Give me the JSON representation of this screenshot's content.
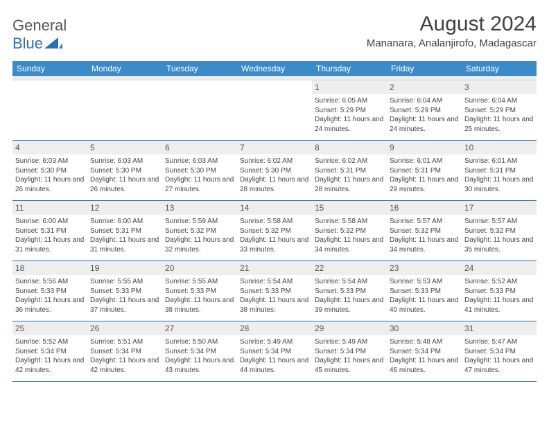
{
  "logo": {
    "text1": "General",
    "text2": "Blue"
  },
  "header": {
    "month": "August 2024",
    "location": "Mananara, Analanjirofo, Madagascar"
  },
  "colors": {
    "header_bg": "#3b8bc9",
    "accent": "#2d6fb6",
    "num_bg": "#eeeeee"
  },
  "weekdays": [
    "Sunday",
    "Monday",
    "Tuesday",
    "Wednesday",
    "Thursday",
    "Friday",
    "Saturday"
  ],
  "weeks": [
    [
      {
        "empty": true
      },
      {
        "empty": true
      },
      {
        "empty": true
      },
      {
        "empty": true
      },
      {
        "num": "1",
        "sunrise": "6:05 AM",
        "sunset": "5:29 PM",
        "daylight": "11 hours and 24 minutes."
      },
      {
        "num": "2",
        "sunrise": "6:04 AM",
        "sunset": "5:29 PM",
        "daylight": "11 hours and 24 minutes."
      },
      {
        "num": "3",
        "sunrise": "6:04 AM",
        "sunset": "5:29 PM",
        "daylight": "11 hours and 25 minutes."
      }
    ],
    [
      {
        "num": "4",
        "sunrise": "6:03 AM",
        "sunset": "5:30 PM",
        "daylight": "11 hours and 26 minutes."
      },
      {
        "num": "5",
        "sunrise": "6:03 AM",
        "sunset": "5:30 PM",
        "daylight": "11 hours and 26 minutes."
      },
      {
        "num": "6",
        "sunrise": "6:03 AM",
        "sunset": "5:30 PM",
        "daylight": "11 hours and 27 minutes."
      },
      {
        "num": "7",
        "sunrise": "6:02 AM",
        "sunset": "5:30 PM",
        "daylight": "11 hours and 28 minutes."
      },
      {
        "num": "8",
        "sunrise": "6:02 AM",
        "sunset": "5:31 PM",
        "daylight": "11 hours and 28 minutes."
      },
      {
        "num": "9",
        "sunrise": "6:01 AM",
        "sunset": "5:31 PM",
        "daylight": "11 hours and 29 minutes."
      },
      {
        "num": "10",
        "sunrise": "6:01 AM",
        "sunset": "5:31 PM",
        "daylight": "11 hours and 30 minutes."
      }
    ],
    [
      {
        "num": "11",
        "sunrise": "6:00 AM",
        "sunset": "5:31 PM",
        "daylight": "11 hours and 31 minutes."
      },
      {
        "num": "12",
        "sunrise": "6:00 AM",
        "sunset": "5:31 PM",
        "daylight": "11 hours and 31 minutes."
      },
      {
        "num": "13",
        "sunrise": "5:59 AM",
        "sunset": "5:32 PM",
        "daylight": "11 hours and 32 minutes."
      },
      {
        "num": "14",
        "sunrise": "5:58 AM",
        "sunset": "5:32 PM",
        "daylight": "11 hours and 33 minutes."
      },
      {
        "num": "15",
        "sunrise": "5:58 AM",
        "sunset": "5:32 PM",
        "daylight": "11 hours and 34 minutes."
      },
      {
        "num": "16",
        "sunrise": "5:57 AM",
        "sunset": "5:32 PM",
        "daylight": "11 hours and 34 minutes."
      },
      {
        "num": "17",
        "sunrise": "5:57 AM",
        "sunset": "5:32 PM",
        "daylight": "11 hours and 35 minutes."
      }
    ],
    [
      {
        "num": "18",
        "sunrise": "5:56 AM",
        "sunset": "5:33 PM",
        "daylight": "11 hours and 36 minutes."
      },
      {
        "num": "19",
        "sunrise": "5:55 AM",
        "sunset": "5:33 PM",
        "daylight": "11 hours and 37 minutes."
      },
      {
        "num": "20",
        "sunrise": "5:55 AM",
        "sunset": "5:33 PM",
        "daylight": "11 hours and 38 minutes."
      },
      {
        "num": "21",
        "sunrise": "5:54 AM",
        "sunset": "5:33 PM",
        "daylight": "11 hours and 38 minutes."
      },
      {
        "num": "22",
        "sunrise": "5:54 AM",
        "sunset": "5:33 PM",
        "daylight": "11 hours and 39 minutes."
      },
      {
        "num": "23",
        "sunrise": "5:53 AM",
        "sunset": "5:33 PM",
        "daylight": "11 hours and 40 minutes."
      },
      {
        "num": "24",
        "sunrise": "5:52 AM",
        "sunset": "5:33 PM",
        "daylight": "11 hours and 41 minutes."
      }
    ],
    [
      {
        "num": "25",
        "sunrise": "5:52 AM",
        "sunset": "5:34 PM",
        "daylight": "11 hours and 42 minutes."
      },
      {
        "num": "26",
        "sunrise": "5:51 AM",
        "sunset": "5:34 PM",
        "daylight": "11 hours and 42 minutes."
      },
      {
        "num": "27",
        "sunrise": "5:50 AM",
        "sunset": "5:34 PM",
        "daylight": "11 hours and 43 minutes."
      },
      {
        "num": "28",
        "sunrise": "5:49 AM",
        "sunset": "5:34 PM",
        "daylight": "11 hours and 44 minutes."
      },
      {
        "num": "29",
        "sunrise": "5:49 AM",
        "sunset": "5:34 PM",
        "daylight": "11 hours and 45 minutes."
      },
      {
        "num": "30",
        "sunrise": "5:48 AM",
        "sunset": "5:34 PM",
        "daylight": "11 hours and 46 minutes."
      },
      {
        "num": "31",
        "sunrise": "5:47 AM",
        "sunset": "5:34 PM",
        "daylight": "11 hours and 47 minutes."
      }
    ]
  ],
  "labels": {
    "sunrise": "Sunrise: ",
    "sunset": "Sunset: ",
    "daylight": "Daylight: "
  }
}
